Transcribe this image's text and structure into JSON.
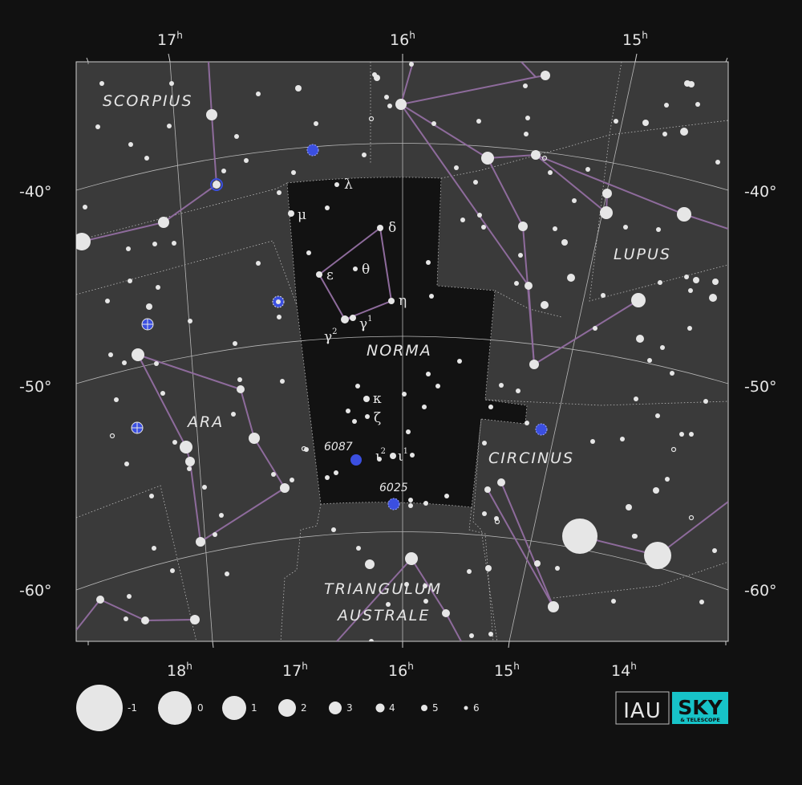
{
  "constellations": [
    {
      "id": "scorpius",
      "label": "SCORPIUS"
    },
    {
      "id": "lupus",
      "label": "LUPUS"
    },
    {
      "id": "norma",
      "label": "NORMA"
    },
    {
      "id": "ara",
      "label": "ARA"
    },
    {
      "id": "circinus",
      "label": "CIRCINUS"
    },
    {
      "id": "triangulum-australe-1",
      "label": "TRIANGULUM"
    },
    {
      "id": "triangulum-australe-2",
      "label": "AUSTRALE"
    }
  ],
  "ra_top": [
    "17",
    "16",
    "15"
  ],
  "ra_bottom": [
    "18",
    "17",
    "16",
    "15",
    "14"
  ],
  "ra_unit": "h",
  "dec_labels": [
    "-40°",
    "-50°",
    "-60°"
  ],
  "star_labels": [
    {
      "id": "lambda",
      "text": "λ"
    },
    {
      "id": "mu",
      "text": "μ"
    },
    {
      "id": "delta",
      "text": "δ"
    },
    {
      "id": "epsilon",
      "text": "ε"
    },
    {
      "id": "theta",
      "text": "θ"
    },
    {
      "id": "eta",
      "text": "η"
    },
    {
      "id": "gamma2",
      "text": "γ",
      "sup": "2"
    },
    {
      "id": "gamma1",
      "text": "γ",
      "sup": "1"
    },
    {
      "id": "kappa",
      "text": "κ"
    },
    {
      "id": "zeta",
      "text": "ζ"
    },
    {
      "id": "iota2",
      "text": "ι",
      "sup": "2"
    },
    {
      "id": "iota1",
      "text": "ι",
      "sup": "1"
    }
  ],
  "clusters": [
    {
      "id": "ngc6087",
      "label": "6087"
    },
    {
      "id": "ngc6025",
      "label": "6025"
    }
  ],
  "magnitude_scale": [
    "-1",
    "0",
    "1",
    "2",
    "3",
    "4",
    "5",
    "6"
  ],
  "logos": {
    "iau": "IAU",
    "sky": "SKY",
    "sky_sub": "& TELESCOPE"
  },
  "colors": {
    "background": "#111111",
    "chart_area": "#3a3a3a",
    "norma_region": "#121212",
    "stick_figure": "#8e6b9c",
    "star": "#e6e6e6",
    "cluster": "#3b4fe0",
    "grid": "#b0b0b0",
    "sky_logo": "#17c3c8"
  }
}
